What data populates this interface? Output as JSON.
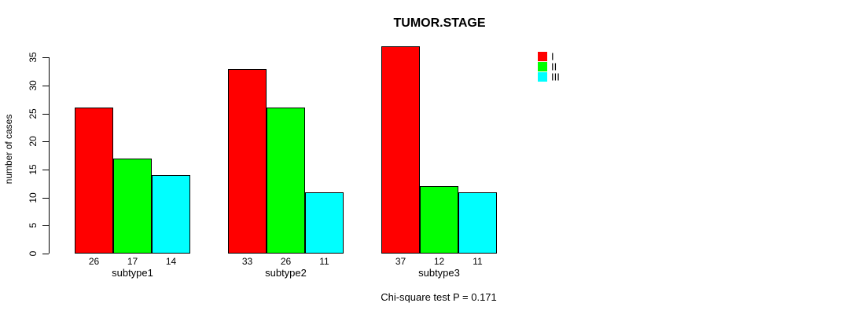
{
  "chart_data": {
    "type": "bar",
    "title": "TUMOR.STAGE",
    "ylabel": "number of cases",
    "xlabel": "",
    "categories": [
      "subtype1",
      "subtype2",
      "subtype3"
    ],
    "series": [
      {
        "name": "I",
        "color": "#ff0000",
        "values": [
          26,
          33,
          37
        ]
      },
      {
        "name": "II",
        "color": "#00ff00",
        "values": [
          17,
          26,
          12
        ]
      },
      {
        "name": "III",
        "color": "#00ffff",
        "values": [
          14,
          11,
          11
        ]
      }
    ],
    "bar_value_labels_shown": true,
    "y_ticks": [
      0,
      5,
      10,
      15,
      20,
      25,
      30,
      35
    ],
    "ylim": [
      0,
      37
    ],
    "grid": false,
    "legend_position": "right",
    "annotation": "Chi-square test P = 0.171"
  }
}
